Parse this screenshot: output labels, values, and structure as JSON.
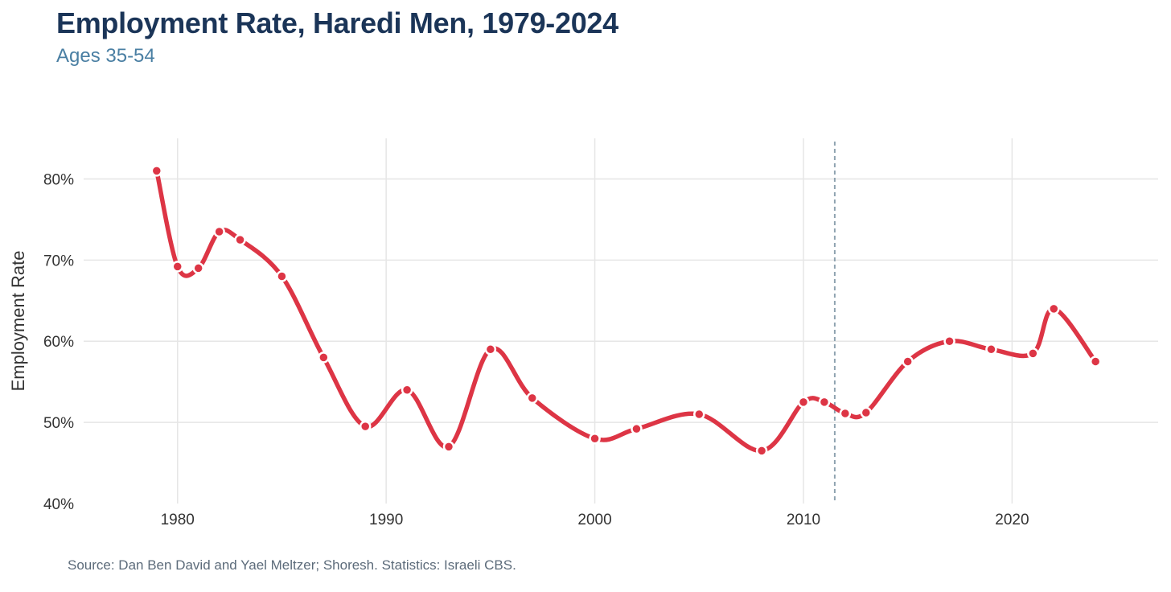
{
  "header": {
    "title": "Employment Rate, Haredi Men, 1979-2024",
    "subtitle": "Ages 35-54"
  },
  "footer": {
    "source": "Source: Dan Ben David and Yael Meltzer; Shoresh. Statistics: Israeli CBS."
  },
  "colors": {
    "line": "#dd3545",
    "marker_stroke": "#ffffff",
    "grid": "#e6e6e6",
    "reference_line": "#8fa3b0",
    "title": "#1b3558",
    "subtitle": "#4a7fa3"
  },
  "chart_data": {
    "type": "line",
    "title": "Employment Rate, Haredi Men, 1979-2024",
    "subtitle": "Ages 35-54",
    "xlabel": "",
    "ylabel": "Employment Rate",
    "xlim": [
      1975.5,
      2027
    ],
    "ylim": [
      40,
      85
    ],
    "x_ticks": [
      1980,
      1990,
      2000,
      2010,
      2020
    ],
    "x_tick_labels": [
      "1980",
      "1990",
      "2000",
      "2010",
      "2020"
    ],
    "y_ticks": [
      40,
      50,
      60,
      70,
      80
    ],
    "y_tick_labels": [
      "40%",
      "50%",
      "60%",
      "70%",
      "80%"
    ],
    "grid": true,
    "reference_line_x": 2011.5,
    "series": [
      {
        "name": "Employment Rate",
        "x": [
          1979,
          1980,
          1981,
          1982,
          1983,
          1985,
          1987,
          1989,
          1991,
          1993,
          1995,
          1997,
          2000,
          2002,
          2005,
          2008,
          2010,
          2011,
          2012,
          2013,
          2015,
          2017,
          2019,
          2021,
          2022,
          2024
        ],
        "values": [
          81,
          69.2,
          69,
          73.5,
          72.5,
          68,
          58,
          49.5,
          54,
          47,
          59,
          53,
          48,
          49.2,
          51,
          46.5,
          52.5,
          52.5,
          51.1,
          51.2,
          57.5,
          60,
          59,
          58.5,
          64,
          57.5
        ]
      }
    ]
  }
}
